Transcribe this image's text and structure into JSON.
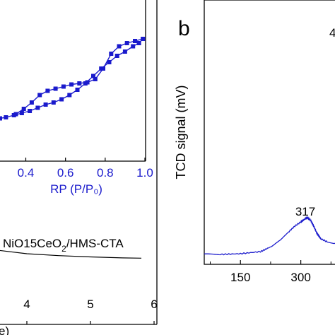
{
  "chart_data": [
    {
      "type": "line",
      "panel": "a (cropped)",
      "xlabel_fragment": "e)",
      "x_ticks": [
        "4",
        "5",
        "6"
      ],
      "sample_label": "NiO15CeO",
      "sample_label_sub": "2",
      "sample_label_suffix": "/HMS-CTA",
      "series": [
        {
          "x": [
            3.5,
            4.0,
            4.5,
            5.0,
            5.5,
            5.8
          ],
          "y": [
            0.16,
            0.1,
            0.07,
            0.05,
            0.035,
            0.03
          ]
        }
      ],
      "inset": {
        "type": "line",
        "xlabel": "RP (P/P₀)",
        "x_ticks": [
          "0.4",
          "0.6",
          "0.8",
          "1.0"
        ],
        "xlim": [
          0.27,
          1.0
        ],
        "ylim": [
          0,
          1
        ],
        "color": "#1a1acc",
        "series": [
          {
            "x": [
              0.27,
              0.3,
              0.34,
              0.38,
              0.42,
              0.46,
              0.5,
              0.54,
              0.58,
              0.62,
              0.66,
              0.7,
              0.74,
              0.78,
              0.82,
              0.86,
              0.9,
              0.94,
              0.97,
              0.99
            ],
            "y": [
              0.15,
              0.16,
              0.18,
              0.2,
              0.22,
              0.25,
              0.28,
              0.3,
              0.33,
              0.37,
              0.42,
              0.48,
              0.55,
              0.62,
              0.68,
              0.74,
              0.78,
              0.83,
              0.86,
              0.9
            ]
          },
          {
            "x": [
              0.99,
              0.95,
              0.91,
              0.87,
              0.83,
              0.79,
              0.75,
              0.71,
              0.67,
              0.63,
              0.59,
              0.55,
              0.51,
              0.47,
              0.43,
              0.39,
              0.35
            ],
            "y": [
              0.9,
              0.88,
              0.86,
              0.83,
              0.76,
              0.62,
              0.52,
              0.49,
              0.48,
              0.47,
              0.45,
              0.43,
              0.41,
              0.37,
              0.3,
              0.24,
              0.19
            ]
          }
        ]
      }
    },
    {
      "type": "line",
      "panel": "b",
      "panel_letter": "b",
      "ylabel": "TCD signal (mV)",
      "x_ticks": [
        "150",
        "300"
      ],
      "xlim": [
        60,
        385
      ],
      "peak_label": "317",
      "peak_label_cut": "4",
      "color": "#1a1acc",
      "series": [
        {
          "x": [
            60,
            100,
            150,
            200,
            230,
            250,
            270,
            285,
            300,
            310,
            317,
            325,
            332,
            340,
            350,
            365,
            385
          ],
          "y": [
            0.0,
            0.0,
            0.005,
            0.02,
            0.06,
            0.1,
            0.16,
            0.2,
            0.23,
            0.25,
            0.26,
            0.24,
            0.2,
            0.15,
            0.11,
            0.09,
            0.08
          ]
        }
      ]
    }
  ]
}
